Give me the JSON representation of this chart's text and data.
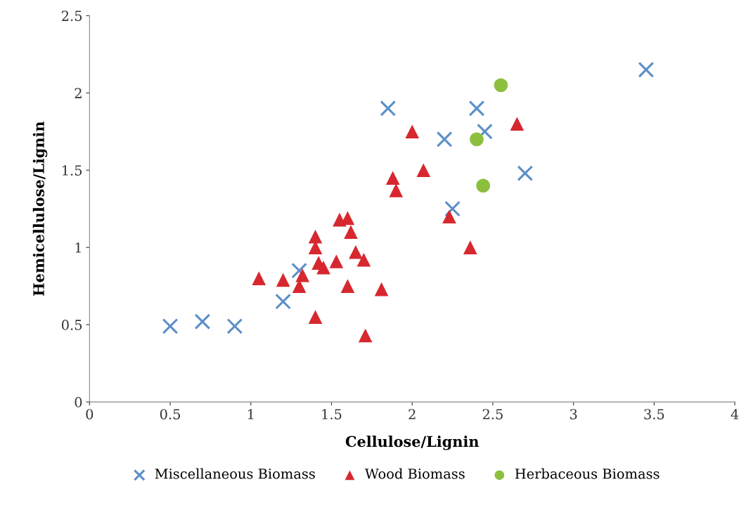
{
  "chart_data": {
    "type": "scatter",
    "xlabel": "Cellulose/Lignin",
    "ylabel": "Hemicellulose/Lignin",
    "xlim": [
      0,
      4
    ],
    "ylim": [
      0,
      2.5
    ],
    "xticks": [
      0,
      0.5,
      1,
      1.5,
      2,
      2.5,
      3,
      3.5,
      4
    ],
    "yticks": [
      0,
      0.5,
      1,
      1.5,
      2,
      2.5
    ],
    "grid": false,
    "legend": "bottom",
    "series": [
      {
        "name": "Miscellaneous Biomass",
        "color": "#5b8fc7",
        "marker": "cross",
        "x": [
          0.5,
          0.7,
          0.9,
          1.2,
          1.3,
          1.85,
          2.2,
          2.4,
          2.45,
          2.25,
          2.7,
          3.45
        ],
        "values": [
          0.49,
          0.52,
          0.49,
          0.65,
          0.85,
          1.9,
          1.7,
          1.9,
          1.75,
          1.25,
          1.48,
          2.15
        ]
      },
      {
        "name": "Wood Biomass",
        "color": "#d7282f",
        "marker": "triangle",
        "x": [
          1.05,
          1.2,
          1.3,
          1.32,
          1.4,
          1.4,
          1.42,
          1.45,
          1.4,
          1.53,
          1.55,
          1.6,
          1.62,
          1.6,
          1.65,
          1.7,
          1.71,
          1.81,
          1.88,
          1.9,
          2.0,
          2.07,
          2.23,
          2.36,
          2.65
        ],
        "values": [
          0.8,
          0.79,
          0.75,
          0.82,
          1.07,
          1.0,
          0.9,
          0.87,
          0.55,
          0.91,
          1.18,
          1.19,
          1.1,
          0.75,
          0.97,
          0.92,
          0.43,
          0.73,
          1.45,
          1.37,
          1.75,
          1.5,
          1.2,
          1.0,
          1.8
        ]
      },
      {
        "name": "Herbaceous Biomass",
        "color": "#8dbf3f",
        "marker": "circle",
        "x": [
          2.55,
          2.4,
          2.44
        ],
        "values": [
          2.05,
          1.7,
          1.4
        ]
      }
    ]
  }
}
